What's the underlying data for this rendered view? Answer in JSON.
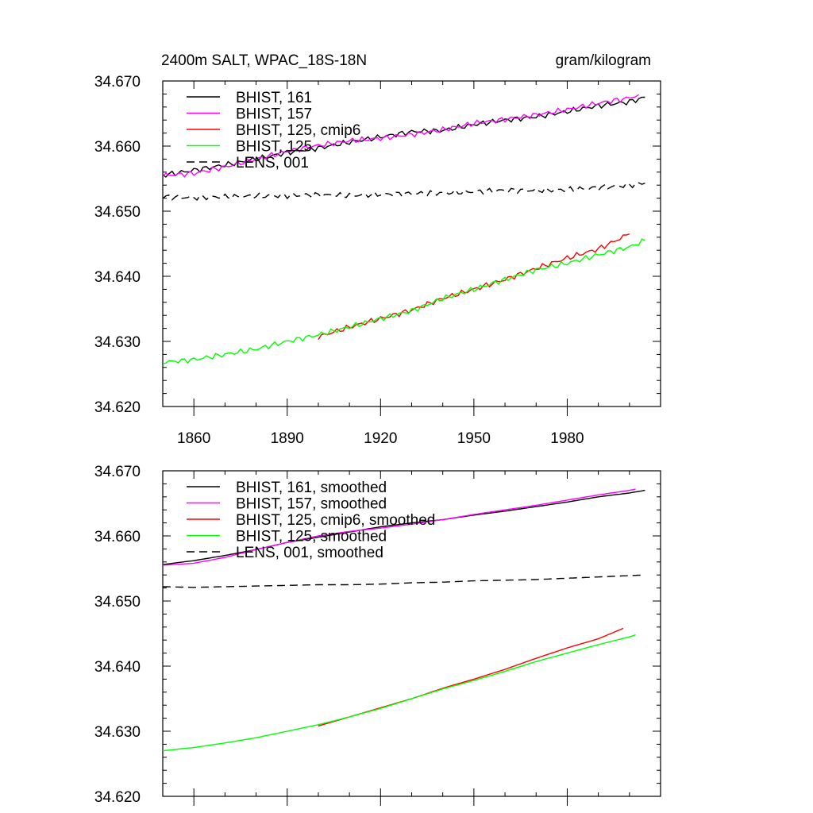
{
  "figure": {
    "title_left": "2400m SALT, WPAC_18S-18N",
    "title_right": "gram/kilogram"
  },
  "chart_data": [
    {
      "type": "line",
      "title": "2400m SALT, WPAC_18S-18N",
      "units": "gram/kilogram",
      "xlim": [
        1850,
        2010
      ],
      "ylim": [
        34.62,
        34.67
      ],
      "xticks": [
        1860,
        1890,
        1920,
        1950,
        1980
      ],
      "xtick_labels": [
        "1860",
        "1890",
        "1920",
        "1950",
        "1980"
      ],
      "yticks": [
        34.62,
        34.63,
        34.64,
        34.65,
        34.66,
        34.67
      ],
      "ytick_labels": [
        "34.620",
        "34.630",
        "34.640",
        "34.650",
        "34.660",
        "34.670"
      ],
      "grid": false,
      "legend_placement": "top-left",
      "series": [
        {
          "name": "BHIST, 161",
          "color": "#000000",
          "dash": "solid",
          "x": [
            1850,
            1860,
            1870,
            1880,
            1890,
            1900,
            1910,
            1920,
            1930,
            1940,
            1950,
            1960,
            1970,
            1980,
            1990,
            2000,
            2005
          ],
          "y": [
            34.6555,
            34.6563,
            34.6571,
            34.658,
            34.659,
            34.6597,
            34.6606,
            34.6614,
            34.6622,
            34.6624,
            34.6633,
            34.664,
            34.6645,
            34.6653,
            34.6662,
            34.6668,
            34.6675
          ]
        },
        {
          "name": "BHIST, 157",
          "color": "#ff00ff",
          "dash": "solid",
          "x": [
            1850,
            1860,
            1870,
            1880,
            1890,
            1900,
            1910,
            1920,
            1930,
            1940,
            1950,
            1960,
            1970,
            1980,
            1990,
            2000,
            2003
          ],
          "y": [
            34.6555,
            34.6558,
            34.6568,
            34.658,
            34.6592,
            34.6601,
            34.6608,
            34.6612,
            34.6618,
            34.6625,
            34.6635,
            34.6641,
            34.6648,
            34.6656,
            34.6666,
            34.6674,
            34.6679
          ]
        },
        {
          "name": "BHIST, 125, cmip6",
          "color": "#ff0000",
          "dash": "solid",
          "x": [
            1900,
            1910,
            1920,
            1930,
            1940,
            1950,
            1960,
            1970,
            1980,
            1990,
            2000
          ],
          "y": [
            34.6307,
            34.6322,
            34.6335,
            34.6348,
            34.6366,
            34.638,
            34.6395,
            34.6412,
            34.6428,
            34.6442,
            34.6465
          ]
        },
        {
          "name": "BHIST, 125",
          "color": "#00ff00",
          "dash": "solid",
          "x": [
            1850,
            1860,
            1870,
            1880,
            1890,
            1900,
            1910,
            1920,
            1930,
            1940,
            1950,
            1960,
            1970,
            1980,
            1990,
            2000,
            2005
          ],
          "y": [
            34.6268,
            34.6272,
            34.628,
            34.6288,
            34.63,
            34.631,
            34.6322,
            34.6335,
            34.6347,
            34.6366,
            34.638,
            34.6395,
            34.641,
            34.642,
            34.6433,
            34.6445,
            34.6455
          ]
        },
        {
          "name": "LENS, 001",
          "color": "#000000",
          "dash": "dashed",
          "x": [
            1850,
            1860,
            1870,
            1880,
            1890,
            1900,
            1910,
            1920,
            1930,
            1940,
            1950,
            1960,
            1970,
            1980,
            1990,
            2000,
            2005
          ],
          "y": [
            34.6522,
            34.6521,
            34.6522,
            34.6523,
            34.6524,
            34.6525,
            34.6524,
            34.6526,
            34.6527,
            34.6528,
            34.653,
            34.6532,
            34.6532,
            34.6533,
            34.6536,
            34.654,
            34.6543
          ]
        }
      ]
    },
    {
      "type": "line",
      "xlim": [
        1850,
        2010
      ],
      "ylim": [
        34.62,
        34.67
      ],
      "xticks": [
        1860,
        1890,
        1920,
        1950,
        1980
      ],
      "yticks": [
        34.62,
        34.63,
        34.64,
        34.65,
        34.66,
        34.67
      ],
      "ytick_labels": [
        "34.620",
        "34.630",
        "34.640",
        "34.650",
        "34.660",
        "34.670"
      ],
      "grid": false,
      "legend_placement": "top-left",
      "series": [
        {
          "name": "BHIST, 161, smoothed",
          "color": "#000000",
          "dash": "solid",
          "x": [
            1850,
            1860,
            1870,
            1880,
            1890,
            1900,
            1910,
            1920,
            1930,
            1940,
            1950,
            1960,
            1970,
            1980,
            1990,
            2000,
            2005
          ],
          "y": [
            34.6556,
            34.6562,
            34.657,
            34.6579,
            34.659,
            34.6598,
            34.6606,
            34.6614,
            34.662,
            34.6625,
            34.6632,
            34.6638,
            34.6645,
            34.6652,
            34.666,
            34.6666,
            34.667
          ]
        },
        {
          "name": "BHIST, 157, smoothed",
          "color": "#ff00ff",
          "dash": "solid",
          "x": [
            1850,
            1860,
            1870,
            1880,
            1890,
            1900,
            1910,
            1920,
            1930,
            1940,
            1950,
            1960,
            1970,
            1980,
            1990,
            2000,
            2002
          ],
          "y": [
            34.6555,
            34.6558,
            34.6567,
            34.6579,
            34.659,
            34.66,
            34.6607,
            34.6612,
            34.6618,
            34.6625,
            34.6633,
            34.664,
            34.6647,
            34.6655,
            34.6663,
            34.667,
            34.6672
          ]
        },
        {
          "name": "BHIST, 125, cmip6, smoothed",
          "color": "#ff0000",
          "dash": "solid",
          "x": [
            1900,
            1910,
            1920,
            1930,
            1940,
            1950,
            1960,
            1970,
            1980,
            1990,
            1998
          ],
          "y": [
            34.6308,
            34.6322,
            34.6336,
            34.635,
            34.6366,
            34.638,
            34.6395,
            34.6412,
            34.6428,
            34.6442,
            34.6458
          ]
        },
        {
          "name": "BHIST, 125, smoothed",
          "color": "#00ff00",
          "dash": "solid",
          "x": [
            1850,
            1860,
            1870,
            1880,
            1890,
            1900,
            1910,
            1920,
            1930,
            1940,
            1950,
            1960,
            1970,
            1980,
            1990,
            2000,
            2002
          ],
          "y": [
            34.627,
            34.6275,
            34.6282,
            34.629,
            34.63,
            34.631,
            34.6322,
            34.6335,
            34.635,
            34.6365,
            34.6378,
            34.6392,
            34.6407,
            34.642,
            34.6433,
            34.6445,
            34.6448
          ]
        },
        {
          "name": "LENS, 001, smoothed",
          "color": "#000000",
          "dash": "dashed",
          "x": [
            1850,
            1860,
            1870,
            1880,
            1890,
            1900,
            1910,
            1920,
            1930,
            1940,
            1950,
            1960,
            1970,
            1980,
            1990,
            2000,
            2005
          ],
          "y": [
            34.6522,
            34.6521,
            34.6522,
            34.6523,
            34.6524,
            34.6525,
            34.6525,
            34.6526,
            34.6528,
            34.6529,
            34.6531,
            34.6532,
            34.6533,
            34.6535,
            34.6537,
            34.6539,
            34.654
          ]
        }
      ]
    }
  ]
}
